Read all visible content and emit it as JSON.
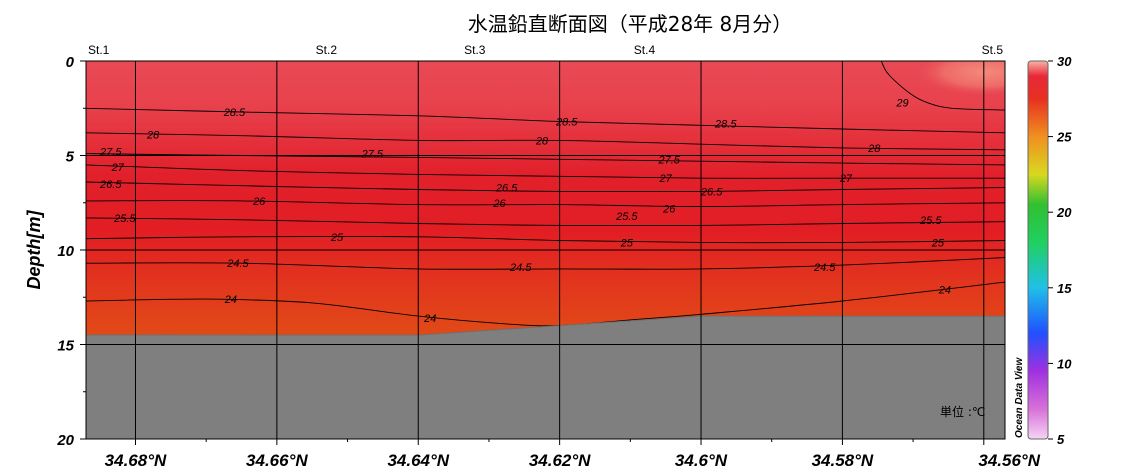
{
  "chart_data": {
    "type": "heatmap",
    "title": "水温鉛直断面図（平成28年 8月分）",
    "ylabel": "Depth[m]",
    "xlabel": "",
    "x_direction": "decreasing latitude to the right",
    "xlim": [
      34.687,
      34.557
    ],
    "ylim": [
      0,
      20
    ],
    "x_ticks": [
      34.68,
      34.66,
      34.64,
      34.62,
      34.6,
      34.58,
      34.56
    ],
    "x_tick_labels": [
      "34.68°N",
      "34.66°N",
      "34.64°N",
      "34.62°N",
      "34.6°N",
      "34.58°N",
      "34.56°N"
    ],
    "y_ticks": [
      0,
      5,
      10,
      15,
      20
    ],
    "y_tick_labels": [
      "0",
      "5",
      "10",
      "15",
      "20"
    ],
    "grid": true,
    "stations": [
      {
        "name": "St.1",
        "lat": 34.687
      },
      {
        "name": "St.2",
        "lat": 34.653
      },
      {
        "name": "St.3",
        "lat": 34.632
      },
      {
        "name": "St.4",
        "lat": 34.608
      },
      {
        "name": "St.5",
        "lat": 34.557
      }
    ],
    "seafloor_depth_m": [
      {
        "lat": 34.687,
        "depth": 14.5
      },
      {
        "lat": 34.64,
        "depth": 14.5
      },
      {
        "lat": 34.62,
        "depth": 14.0
      },
      {
        "lat": 34.6,
        "depth": 13.5
      },
      {
        "lat": 34.557,
        "depth": 13.5
      }
    ],
    "isotherms": [
      {
        "value": 29,
        "label": "29",
        "points": [
          [
            34.5745,
            0
          ],
          [
            34.5735,
            0.7
          ],
          [
            34.5705,
            1.7
          ],
          [
            34.568,
            2.2
          ],
          [
            34.5645,
            2.5
          ],
          [
            34.557,
            2.6
          ]
        ]
      },
      {
        "value": 28.5,
        "label": "28.5",
        "points": [
          [
            34.687,
            2.5
          ],
          [
            34.665,
            2.7
          ],
          [
            34.64,
            2.9
          ],
          [
            34.62,
            3.2
          ],
          [
            34.6,
            3.4
          ],
          [
            34.58,
            3.6
          ],
          [
            34.557,
            3.8
          ]
        ]
      },
      {
        "value": 28,
        "label": "28",
        "points": [
          [
            34.687,
            3.8
          ],
          [
            34.665,
            3.95
          ],
          [
            34.64,
            4.2
          ],
          [
            34.62,
            4.2
          ],
          [
            34.6,
            4.4
          ],
          [
            34.58,
            4.6
          ],
          [
            34.557,
            4.7
          ]
        ]
      },
      {
        "value": 27.5,
        "label": "27.5",
        "points": [
          [
            34.687,
            4.9
          ],
          [
            34.665,
            5.0
          ],
          [
            34.64,
            5.1
          ],
          [
            34.62,
            5.2
          ],
          [
            34.6,
            5.3
          ],
          [
            34.58,
            5.4
          ],
          [
            34.557,
            5.5
          ]
        ]
      },
      {
        "value": 27,
        "label": "27",
        "points": [
          [
            34.687,
            5.5
          ],
          [
            34.665,
            5.8
          ],
          [
            34.64,
            6.0
          ],
          [
            34.62,
            6.1
          ],
          [
            34.6,
            6.2
          ],
          [
            34.58,
            6.2
          ],
          [
            34.557,
            6.2
          ]
        ]
      },
      {
        "value": 26.5,
        "label": "26.5",
        "points": [
          [
            34.687,
            6.4
          ],
          [
            34.665,
            6.6
          ],
          [
            34.64,
            6.8
          ],
          [
            34.62,
            6.9
          ],
          [
            34.6,
            6.9
          ],
          [
            34.58,
            6.8
          ],
          [
            34.557,
            6.7
          ]
        ]
      },
      {
        "value": 26,
        "label": "26",
        "points": [
          [
            34.687,
            7.4
          ],
          [
            34.665,
            7.4
          ],
          [
            34.64,
            7.6
          ],
          [
            34.62,
            7.6
          ],
          [
            34.6,
            7.7
          ],
          [
            34.58,
            7.6
          ],
          [
            34.557,
            7.5
          ]
        ]
      },
      {
        "value": 25.5,
        "label": "25.5",
        "points": [
          [
            34.687,
            8.3
          ],
          [
            34.665,
            8.4
          ],
          [
            34.64,
            8.6
          ],
          [
            34.62,
            8.7
          ],
          [
            34.6,
            8.7
          ],
          [
            34.58,
            8.6
          ],
          [
            34.557,
            8.5
          ]
        ]
      },
      {
        "value": 25,
        "label": "25",
        "points": [
          [
            34.687,
            9.4
          ],
          [
            34.665,
            9.3
          ],
          [
            34.64,
            9.3
          ],
          [
            34.62,
            9.5
          ],
          [
            34.6,
            9.6
          ],
          [
            34.58,
            9.6
          ],
          [
            34.557,
            9.5
          ]
        ]
      },
      {
        "value": 24.5,
        "label": "24.5",
        "points": [
          [
            34.687,
            10.7
          ],
          [
            34.665,
            10.7
          ],
          [
            34.64,
            11.0
          ],
          [
            34.62,
            11.0
          ],
          [
            34.6,
            11.0
          ],
          [
            34.58,
            10.8
          ],
          [
            34.557,
            10.4
          ]
        ]
      },
      {
        "value": 24,
        "label": "24",
        "points": [
          [
            34.687,
            12.7
          ],
          [
            34.67,
            12.6
          ],
          [
            34.655,
            12.8
          ],
          [
            34.64,
            13.5
          ],
          [
            34.628,
            13.9
          ],
          [
            34.62,
            14.0
          ],
          [
            34.61,
            13.7
          ],
          [
            34.6,
            13.4
          ],
          [
            34.58,
            12.7
          ],
          [
            34.557,
            11.7
          ]
        ]
      }
    ],
    "contour_labels": [
      {
        "label": "29",
        "lat": 34.5715,
        "depth": 2.2
      },
      {
        "label": "28.5",
        "lat": 34.666,
        "depth": 2.7
      },
      {
        "label": "28.5",
        "lat": 34.619,
        "depth": 3.2
      },
      {
        "label": "28.5",
        "lat": 34.5965,
        "depth": 3.3
      },
      {
        "label": "28",
        "lat": 34.6775,
        "depth": 3.9
      },
      {
        "label": "28",
        "lat": 34.6225,
        "depth": 4.2
      },
      {
        "label": "28",
        "lat": 34.5755,
        "depth": 4.6
      },
      {
        "label": "27.5",
        "lat": 34.6835,
        "depth": 4.8
      },
      {
        "label": "27.5",
        "lat": 34.6465,
        "depth": 4.9
      },
      {
        "label": "27.5",
        "lat": 34.6045,
        "depth": 5.2
      },
      {
        "label": "27",
        "lat": 34.6825,
        "depth": 5.6
      },
      {
        "label": "27",
        "lat": 34.605,
        "depth": 6.2
      },
      {
        "label": "27",
        "lat": 34.5795,
        "depth": 6.2
      },
      {
        "label": "26.5",
        "lat": 34.6835,
        "depth": 6.5
      },
      {
        "label": "26.5",
        "lat": 34.6275,
        "depth": 6.7
      },
      {
        "label": "26.5",
        "lat": 34.5985,
        "depth": 6.9
      },
      {
        "label": "26",
        "lat": 34.6625,
        "depth": 7.4
      },
      {
        "label": "26",
        "lat": 34.6285,
        "depth": 7.5
      },
      {
        "label": "26",
        "lat": 34.6045,
        "depth": 7.8
      },
      {
        "label": "25.5",
        "lat": 34.6815,
        "depth": 8.3
      },
      {
        "label": "25.5",
        "lat": 34.6105,
        "depth": 8.2
      },
      {
        "label": "25.5",
        "lat": 34.5675,
        "depth": 8.4
      },
      {
        "label": "25",
        "lat": 34.6515,
        "depth": 9.3
      },
      {
        "label": "25",
        "lat": 34.6105,
        "depth": 9.6
      },
      {
        "label": "25",
        "lat": 34.5665,
        "depth": 9.6
      },
      {
        "label": "24.5",
        "lat": 34.6655,
        "depth": 10.7
      },
      {
        "label": "24.5",
        "lat": 34.6255,
        "depth": 10.9
      },
      {
        "label": "24.5",
        "lat": 34.5825,
        "depth": 10.9
      },
      {
        "label": "24",
        "lat": 34.6665,
        "depth": 12.6
      },
      {
        "label": "24",
        "lat": 34.6383,
        "depth": 13.6
      },
      {
        "label": "24",
        "lat": 34.5655,
        "depth": 12.1
      }
    ],
    "colorbar": {
      "min": 5,
      "max": 30,
      "ticks": [
        5,
        10,
        15,
        20,
        25,
        30
      ],
      "tick_labels": [
        "5",
        "10",
        "15",
        "20",
        "25",
        "30"
      ],
      "colors": [
        "#f0c8f0",
        "#d060d0",
        "#2060ff",
        "#20c0e0",
        "#20d040",
        "#e0e020",
        "#f09020",
        "#e04020",
        "#e82030",
        "#f8b0a0"
      ]
    },
    "colors": {
      "seafloor": "#7f7f7f",
      "grid": "#000000"
    },
    "watermark": "Ocean Data View",
    "unit_note": "単位 :℃"
  }
}
